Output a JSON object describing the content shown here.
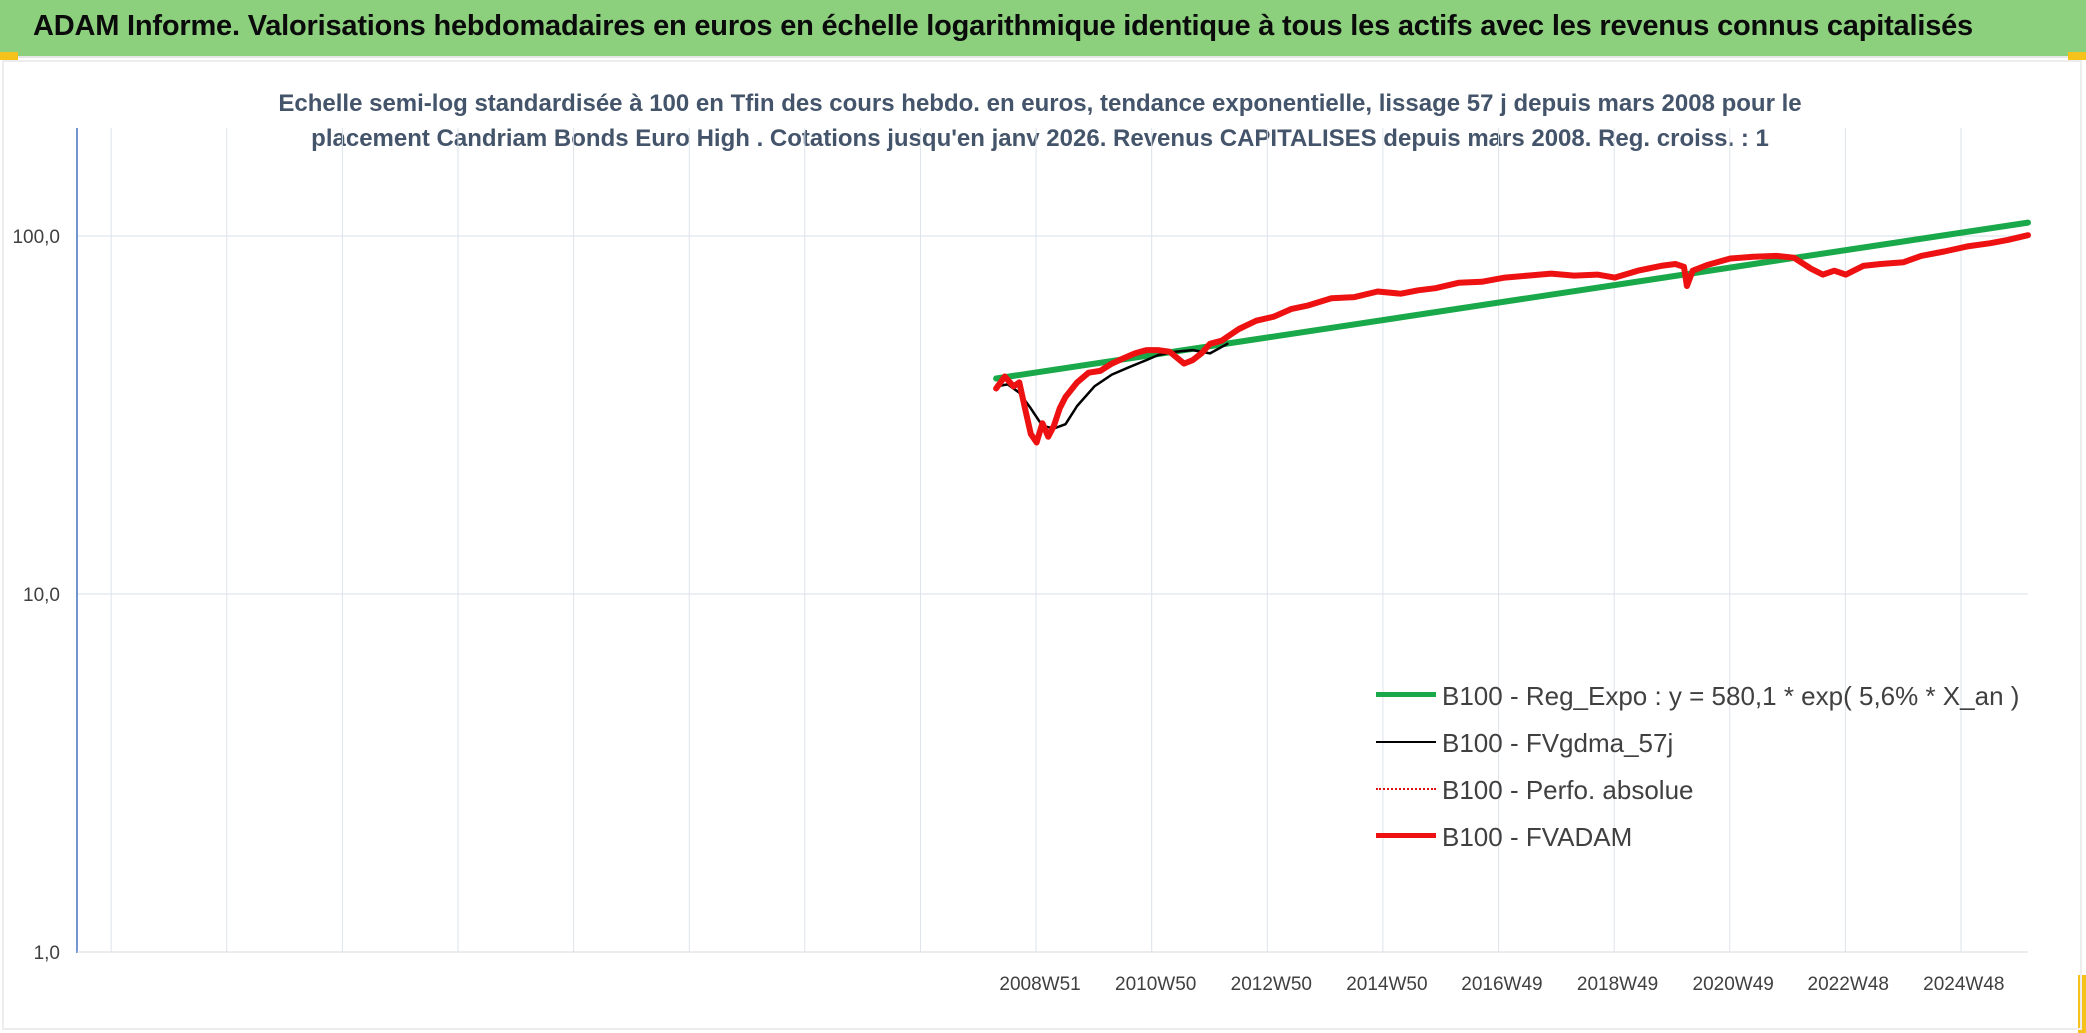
{
  "banner": {
    "title": "ADAM Informe. Valorisations hebdomadaires en euros en échelle logarithmique identique à tous les actifs avec les revenus connus capitalisés",
    "color": "#8cd07e"
  },
  "chart_data": {
    "type": "line",
    "title": [
      "Echelle semi-log standardisée à 100 en Tfin des cours hebdo. en euros, tendance exponentielle, lissage 57 j depuis mars 2008 pour le",
      "placement Candriam Bonds Euro High . Cotations jusqu'en janv 2026. Revenus CAPITALISES depuis mars 2008. Reg. croiss. : 1"
    ],
    "xlabel": "",
    "ylabel": "",
    "y_scale": "log",
    "ylim": [
      1,
      180
    ],
    "y_ticks": [
      "1,0",
      "10,0",
      "100,0"
    ],
    "xlim": [
      1992.3,
      2026.05
    ],
    "x_ticks": [
      {
        "label": "2008W51",
        "x": 2008.96
      },
      {
        "label": "2010W50",
        "x": 2010.96
      },
      {
        "label": "2012W50",
        "x": 2012.96
      },
      {
        "label": "2014W50",
        "x": 2014.96
      },
      {
        "label": "2016W49",
        "x": 2016.95
      },
      {
        "label": "2018W49",
        "x": 2018.95
      },
      {
        "label": "2020W49",
        "x": 2020.95
      },
      {
        "label": "2022W48",
        "x": 2022.94
      },
      {
        "label": "2024W48",
        "x": 2024.94
      }
    ],
    "grid": true,
    "legend_position": "bottom-right",
    "series": [
      {
        "name": "B100 - Reg_Expo : y = 580,1 * exp( 5,6% *  X_an )",
        "color": "#19a94a",
        "style": "solid-thick",
        "x": [
          2008.2,
          2026.05
        ],
        "values": [
          40.0,
          109.0
        ]
      },
      {
        "name": "B100 - FVgdma_57j",
        "color": "#000000",
        "style": "solid-thin",
        "x": [
          2008.2,
          2008.4,
          2008.6,
          2008.8,
          2009.0,
          2009.2,
          2009.4,
          2009.6,
          2009.9,
          2010.2,
          2010.5,
          2010.8,
          2011.0,
          2011.3,
          2011.6,
          2011.9,
          2012.2
        ],
        "values": [
          38,
          38.5,
          36.5,
          33,
          29.5,
          29,
          29.8,
          33.5,
          38,
          41,
          43,
          45,
          46.5,
          47.5,
          48,
          47,
          50
        ]
      },
      {
        "name": "B100 - Perfo. absolue",
        "color": "#e01010",
        "style": "dotted"
      },
      {
        "name": "B100 - FVADAM",
        "color": "#ee1111",
        "style": "solid-thick",
        "x": [
          2008.2,
          2008.35,
          2008.5,
          2008.6,
          2008.7,
          2008.8,
          2008.9,
          2009.0,
          2009.1,
          2009.2,
          2009.3,
          2009.4,
          2009.6,
          2009.8,
          2010.0,
          2010.2,
          2010.4,
          2010.6,
          2010.8,
          2011.0,
          2011.2,
          2011.45,
          2011.6,
          2011.75,
          2011.9,
          2012.1,
          2012.4,
          2012.7,
          2013.0,
          2013.3,
          2013.6,
          2014.0,
          2014.4,
          2014.8,
          2015.2,
          2015.5,
          2015.8,
          2016.2,
          2016.6,
          2017.0,
          2017.4,
          2017.8,
          2018.2,
          2018.6,
          2018.9,
          2019.3,
          2019.7,
          2019.95,
          2020.1,
          2020.15,
          2020.25,
          2020.5,
          2020.9,
          2021.3,
          2021.7,
          2022.0,
          2022.3,
          2022.5,
          2022.7,
          2022.9,
          2023.2,
          2023.5,
          2023.9,
          2024.2,
          2024.6,
          2025.0,
          2025.4,
          2025.7,
          2026.05
        ],
        "values": [
          37.5,
          40.5,
          38,
          39,
          33,
          28,
          26.5,
          30,
          27.5,
          29.5,
          33,
          35.5,
          39,
          41.5,
          42,
          44,
          45.5,
          47,
          48,
          48,
          47.5,
          44,
          45,
          47,
          50,
          51,
          55,
          58,
          59.5,
          62.5,
          64,
          67,
          67.5,
          70,
          69,
          70.5,
          71.5,
          74,
          74.5,
          76.5,
          77.5,
          78.5,
          77.5,
          78,
          76.5,
          80,
          82.5,
          83.5,
          82,
          72.5,
          80,
          83,
          86.5,
          87.5,
          88,
          87,
          81,
          78,
          80,
          78,
          82.5,
          83.5,
          84.5,
          88,
          90.5,
          93.5,
          95.5,
          97.5,
          100.5
        ]
      }
    ]
  }
}
